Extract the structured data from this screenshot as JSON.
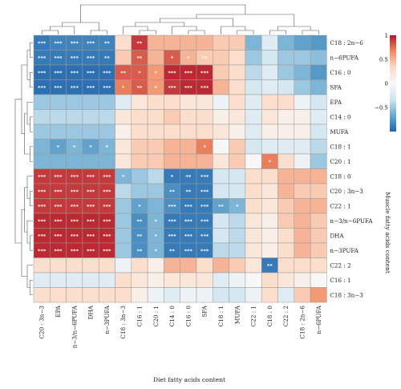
{
  "chart_data": {
    "type": "heatmap",
    "xlabel": "Diet fatty acids content",
    "ylabel": "Muscle fatty acids content",
    "columns": [
      "C20 : 3n−3",
      "EPA",
      "n−3/n−6PUFA",
      "DHA",
      "n−3PUFA",
      "C18 : 3n−3",
      "C16 : 1",
      "C20 : 1",
      "C14 : 0",
      "C16 : 0",
      "SFA",
      "C18 : 1",
      "MUFA",
      "C22 : 1",
      "C18 : 0",
      "C22 : 2",
      "C18 : 2n−6",
      "n−6PUFA"
    ],
    "rows": [
      "C18 : 2n−6",
      "n−6PUFA",
      "C16 : 0",
      "SFA",
      "EPA",
      "C14 : 0",
      "MUFA",
      "C18 : 1",
      "C20 : 1",
      "C18 : 0",
      "C20 : 3n−3",
      "C22 : 1",
      "n−3/n−6PUFA",
      "DHA",
      "n−3PUFA",
      "C22 : 2",
      "C16 : 1",
      "C18 : 3n−3"
    ],
    "values": [
      [
        -0.9,
        -0.85,
        -0.85,
        -0.85,
        -0.85,
        0.3,
        0.9,
        0.5,
        0.5,
        0.5,
        0.5,
        0.4,
        0.4,
        -0.6,
        -0.2,
        -0.6,
        -0.7,
        -0.75
      ],
      [
        -0.9,
        -0.9,
        -0.9,
        -0.9,
        -0.9,
        0.4,
        0.8,
        0.5,
        0.8,
        0.5,
        0.4,
        0.4,
        0.3,
        -0.5,
        -0.3,
        -0.5,
        -0.5,
        -0.55
      ],
      [
        -0.95,
        -0.95,
        -0.95,
        -0.95,
        -0.95,
        0.8,
        0.8,
        0.6,
        0.95,
        0.95,
        0.95,
        0.4,
        0.3,
        -0.4,
        -0.2,
        -0.5,
        -0.6,
        -0.75
      ],
      [
        -0.95,
        -0.95,
        -0.95,
        -0.95,
        -0.95,
        0.7,
        0.8,
        0.6,
        0.9,
        0.95,
        0.95,
        0.5,
        0.3,
        -0.3,
        -0.2,
        -0.3,
        -0.5,
        -0.6
      ],
      [
        -0.5,
        -0.5,
        -0.5,
        -0.5,
        -0.5,
        -0.2,
        0.2,
        0.3,
        0.3,
        0.2,
        0.2,
        -0.1,
        0.3,
        -0.2,
        0.3,
        0.3,
        -0.1,
        -0.3
      ],
      [
        -0.4,
        -0.4,
        -0.4,
        -0.4,
        -0.4,
        0.2,
        0.3,
        0.3,
        0.4,
        0.3,
        0.3,
        0.1,
        0.2,
        -0.2,
        0.2,
        0.1,
        0.1,
        -0.2
      ],
      [
        -0.5,
        -0.5,
        -0.5,
        -0.5,
        -0.5,
        0.1,
        0.3,
        0.3,
        0.3,
        0.3,
        0.3,
        0.2,
        0.1,
        -0.2,
        0.1,
        0.1,
        0.1,
        -0.3
      ],
      [
        -0.6,
        -0.7,
        -0.6,
        -0.7,
        -0.6,
        0.2,
        0.4,
        0.4,
        0.5,
        0.5,
        0.7,
        0.0,
        0.4,
        -0.3,
        -0.2,
        -0.2,
        -0.2,
        -0.4
      ],
      [
        -0.6,
        -0.6,
        -0.6,
        -0.6,
        -0.6,
        0.2,
        0.4,
        0.4,
        0.5,
        0.5,
        0.5,
        0.2,
        0.4,
        0.0,
        0.7,
        0.3,
        -0.1,
        -0.5
      ],
      [
        0.9,
        0.9,
        0.9,
        0.9,
        0.9,
        -0.6,
        -0.5,
        -0.4,
        -0.9,
        -0.9,
        -0.9,
        -0.3,
        -0.3,
        0.3,
        0.3,
        0.5,
        0.5,
        0.5
      ],
      [
        0.9,
        0.9,
        0.9,
        0.9,
        0.9,
        -0.4,
        -0.5,
        -0.5,
        -0.8,
        -0.9,
        -0.9,
        -0.3,
        -0.3,
        0.3,
        0.2,
        0.5,
        0.4,
        0.4
      ],
      [
        0.9,
        0.9,
        0.9,
        0.9,
        0.9,
        -0.5,
        -0.7,
        -0.6,
        -0.8,
        -0.9,
        -0.9,
        -0.7,
        -0.6,
        0.3,
        0.2,
        0.4,
        0.5,
        0.5
      ],
      [
        0.95,
        0.95,
        0.95,
        0.95,
        0.95,
        -0.5,
        -0.8,
        -0.6,
        -0.9,
        -0.9,
        -0.9,
        -0.3,
        -0.4,
        0.2,
        0.1,
        0.4,
        0.5,
        0.4
      ],
      [
        0.95,
        0.95,
        0.95,
        0.95,
        0.95,
        -0.5,
        -0.8,
        -0.6,
        -0.9,
        -0.9,
        -0.9,
        -0.3,
        -0.4,
        0.2,
        0.1,
        0.3,
        0.5,
        0.4
      ],
      [
        0.95,
        0.95,
        0.95,
        0.95,
        0.95,
        -0.5,
        -0.8,
        -0.6,
        -0.9,
        -0.9,
        -0.9,
        -0.4,
        -0.4,
        0.2,
        0.1,
        0.3,
        0.5,
        0.4
      ],
      [
        0.3,
        0.3,
        0.3,
        0.3,
        0.3,
        -0.1,
        0.3,
        0.1,
        0.5,
        0.5,
        0.3,
        0.5,
        0.4,
        0.2,
        -0.9,
        0.3,
        0.3,
        0.3
      ],
      [
        -0.2,
        -0.2,
        -0.2,
        -0.2,
        -0.2,
        0.3,
        0.2,
        0.1,
        0.2,
        0.2,
        0.2,
        -0.2,
        -0.1,
        0.0,
        0.3,
        0.2,
        0.1,
        0.0
      ],
      [
        0.3,
        0.3,
        0.3,
        0.3,
        0.3,
        0.3,
        0.1,
        -0.1,
        -0.2,
        -0.1,
        -0.1,
        -0.3,
        -0.3,
        -0.1,
        0.3,
        -0.2,
        0.4,
        0.6
      ]
    ],
    "significance": [
      [
        "***",
        "***",
        "***",
        "***",
        "**",
        "",
        "**",
        "",
        "",
        "",
        "",
        "",
        "",
        "",
        "",
        "",
        "",
        ""
      ],
      [
        "***",
        "***",
        "***",
        "***",
        "**",
        "",
        "**",
        "",
        "*",
        "*",
        "**",
        "",
        "",
        "",
        "",
        "",
        "",
        ""
      ],
      [
        "***",
        "***",
        "***",
        "***",
        "***",
        "**",
        "*",
        "*",
        "***",
        "***",
        "***",
        "",
        "",
        "",
        "",
        "",
        "",
        ""
      ],
      [
        "***",
        "***",
        "***",
        "***",
        "***",
        "*",
        "**",
        "*",
        "***",
        "***",
        "***",
        "",
        "",
        "",
        "",
        "",
        "",
        ""
      ],
      [
        "",
        "",
        "",
        "",
        "",
        "",
        "",
        "",
        "",
        "",
        "",
        "",
        "",
        "",
        "",
        "",
        "",
        ""
      ],
      [
        "",
        "",
        "",
        "",
        "",
        "",
        "",
        "",
        "",
        "",
        "",
        "",
        "",
        "",
        "",
        "",
        "",
        ""
      ],
      [
        "",
        "",
        "",
        "",
        "",
        "",
        "",
        "",
        "",
        "",
        "",
        "",
        "",
        "",
        "",
        "",
        "",
        ""
      ],
      [
        "",
        "*",
        "*",
        "*",
        "*",
        "",
        "",
        "",
        "",
        "",
        "*",
        "",
        "",
        "",
        "",
        "",
        "",
        ""
      ],
      [
        "",
        "",
        "",
        "",
        "",
        "",
        "",
        "",
        "",
        "",
        "",
        "",
        "",
        "",
        "*",
        "",
        "",
        ""
      ],
      [
        "***",
        "***",
        "***",
        "***",
        "***",
        "*",
        "",
        "",
        "*",
        "**",
        "***",
        "",
        "",
        "",
        "",
        "",
        "",
        ""
      ],
      [
        "***",
        "***",
        "***",
        "***",
        "***",
        "",
        "",
        "",
        "**",
        "**",
        "***",
        "",
        "",
        "",
        "",
        "",
        "",
        ""
      ],
      [
        "***",
        "***",
        "***",
        "***",
        "***",
        "",
        "*",
        "",
        "***",
        "***",
        "***",
        "**",
        "*",
        "",
        "",
        "",
        "",
        ""
      ],
      [
        "***",
        "***",
        "***",
        "***",
        "***",
        "",
        "**",
        "*",
        "***",
        "***",
        "***",
        "",
        "",
        "",
        "",
        "",
        "",
        ""
      ],
      [
        "***",
        "***",
        "***",
        "***",
        "***",
        "",
        "**",
        "*",
        "***",
        "***",
        "***",
        "",
        "",
        "",
        "",
        "",
        "",
        ""
      ],
      [
        "***",
        "***",
        "***",
        "***",
        "***",
        "",
        "**",
        "*",
        "**",
        "***",
        "***",
        "",
        "",
        "",
        "",
        "",
        "",
        ""
      ],
      [
        "",
        "",
        "",
        "",
        "",
        "",
        "",
        "",
        "",
        "",
        "",
        "",
        "",
        "",
        "**",
        "",
        "",
        ""
      ],
      [
        "",
        "",
        "",
        "",
        "",
        "",
        "",
        "",
        "",
        "",
        "",
        "",
        "",
        "",
        "",
        "",
        "",
        ""
      ],
      [
        "",
        "",
        "",
        "",
        "",
        "",
        "",
        "",
        "",
        "",
        "",
        "",
        "",
        "",
        "",
        "",
        "",
        ""
      ]
    ],
    "color_scale": {
      "min": -1,
      "max": 1,
      "ticks": [
        1,
        0.5,
        0,
        -0.5
      ],
      "tick_labels": [
        "1",
        "0.5",
        "0",
        "−0.5"
      ],
      "colors": [
        "#2166ac",
        "#67a9cf",
        "#d1e5f0",
        "#f7f7f7",
        "#fddbc7",
        "#ef8a62",
        "#b2182b"
      ]
    },
    "grid": true,
    "legend": "right"
  }
}
